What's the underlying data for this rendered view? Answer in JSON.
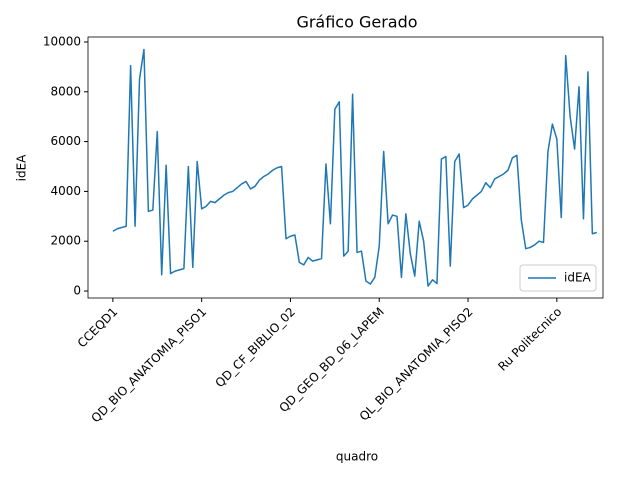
{
  "chart_data": {
    "type": "line",
    "title": "Gráfico Gerado",
    "x_label": "quadro",
    "y_label": "idEA",
    "categories": [
      "CCEQD1",
      null,
      null,
      null,
      null,
      null,
      null,
      null,
      null,
      null,
      null,
      null,
      null,
      null,
      null,
      null,
      null,
      null,
      null,
      null,
      "QD_BIO_ANATOMIA_PISO1",
      null,
      null,
      null,
      null,
      null,
      null,
      null,
      null,
      null,
      null,
      null,
      null,
      null,
      null,
      null,
      null,
      null,
      null,
      null,
      "QD_CF_BIBLIO_02",
      null,
      null,
      null,
      null,
      null,
      null,
      null,
      null,
      null,
      null,
      null,
      null,
      null,
      null,
      null,
      null,
      null,
      null,
      null,
      "QD_GEO_BD_06_LAPEM",
      null,
      null,
      null,
      null,
      null,
      null,
      null,
      null,
      null,
      null,
      null,
      null,
      null,
      null,
      null,
      null,
      null,
      null,
      null,
      "QL_BIO_ANATOMIA_PISO2",
      null,
      null,
      null,
      null,
      null,
      null,
      null,
      null,
      null,
      null,
      null,
      null,
      null,
      null,
      null,
      null,
      null,
      null,
      null,
      "Ru Politecnico",
      null,
      null,
      null,
      null,
      null,
      null,
      null,
      null,
      null
    ],
    "series": [
      {
        "name": "idEA",
        "color": "#1f77b4",
        "values": [
          2400,
          2500,
          2550,
          2600,
          9050,
          2600,
          8500,
          9700,
          3200,
          3250,
          6400,
          650,
          5050,
          700,
          800,
          850,
          900,
          5000,
          950,
          5200,
          3300,
          3400,
          3600,
          3550,
          3700,
          3850,
          3950,
          4000,
          4150,
          4300,
          4400,
          4100,
          4200,
          4450,
          4600,
          4700,
          4850,
          4950,
          5000,
          2100,
          2200,
          2250,
          1150,
          1050,
          1350,
          1200,
          1250,
          1300,
          5100,
          2700,
          7300,
          7600,
          1400,
          1600,
          7900,
          1550,
          1600,
          400,
          280,
          550,
          1800,
          5600,
          2700,
          3050,
          3000,
          550,
          3100,
          1500,
          600,
          2800,
          2000,
          200,
          450,
          300,
          5300,
          5400,
          1000,
          5200,
          5500,
          3350,
          3450,
          3700,
          3850,
          4000,
          4350,
          4150,
          4500,
          4600,
          4700,
          4850,
          5350,
          5450,
          2850,
          1700,
          1750,
          1850,
          2000,
          1950,
          5600,
          6700,
          6100,
          2950,
          9450,
          7000,
          5700,
          8200,
          2900,
          8800,
          2300,
          2350
        ]
      }
    ],
    "xlim": [
      -5.6,
      110.4
    ],
    "ylim": [
      -280,
      10200
    ],
    "yticks": [
      0,
      2000,
      4000,
      6000,
      8000,
      10000
    ],
    "legend": "lower right"
  }
}
